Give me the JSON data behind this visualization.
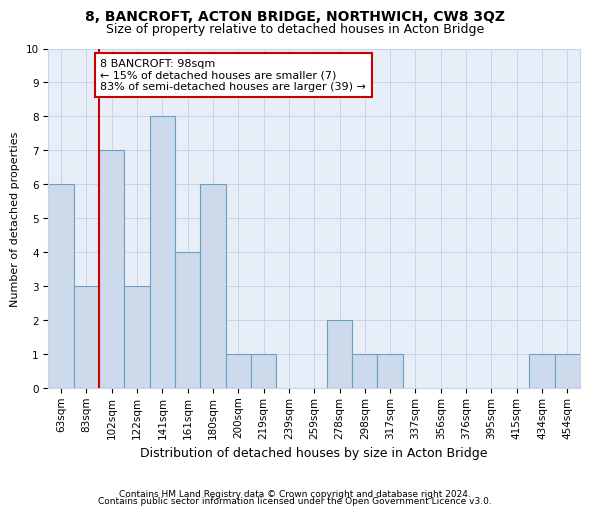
{
  "title1": "8, BANCROFT, ACTON BRIDGE, NORTHWICH, CW8 3QZ",
  "title2": "Size of property relative to detached houses in Acton Bridge",
  "xlabel": "Distribution of detached houses by size in Acton Bridge",
  "ylabel": "Number of detached properties",
  "categories": [
    "63sqm",
    "83sqm",
    "102sqm",
    "122sqm",
    "141sqm",
    "161sqm",
    "180sqm",
    "200sqm",
    "219sqm",
    "239sqm",
    "259sqm",
    "278sqm",
    "298sqm",
    "317sqm",
    "337sqm",
    "356sqm",
    "376sqm",
    "395sqm",
    "415sqm",
    "434sqm",
    "454sqm"
  ],
  "values": [
    6,
    3,
    7,
    3,
    8,
    4,
    6,
    1,
    1,
    0,
    0,
    2,
    1,
    1,
    0,
    0,
    0,
    0,
    0,
    1,
    1
  ],
  "bar_color": "#ccdaeb",
  "bar_edge_color": "#6a9fc0",
  "vline_x_index": 2,
  "vline_color": "#cc0000",
  "annotation_text": "8 BANCROFT: 98sqm\n← 15% of detached houses are smaller (7)\n83% of semi-detached houses are larger (39) →",
  "annotation_box_color": "#ffffff",
  "annotation_box_edge": "#cc0000",
  "ylim": [
    0,
    10
  ],
  "yticks": [
    0,
    1,
    2,
    3,
    4,
    5,
    6,
    7,
    8,
    9,
    10
  ],
  "grid_color": "#c8d4e8",
  "bg_color": "#e8eef8",
  "footnote1": "Contains HM Land Registry data © Crown copyright and database right 2024.",
  "footnote2": "Contains public sector information licensed under the Open Government Licence v3.0.",
  "title1_fontsize": 10,
  "title2_fontsize": 9,
  "xlabel_fontsize": 9,
  "ylabel_fontsize": 8,
  "tick_fontsize": 7.5,
  "annot_fontsize": 8,
  "footnote_fontsize": 6.5
}
